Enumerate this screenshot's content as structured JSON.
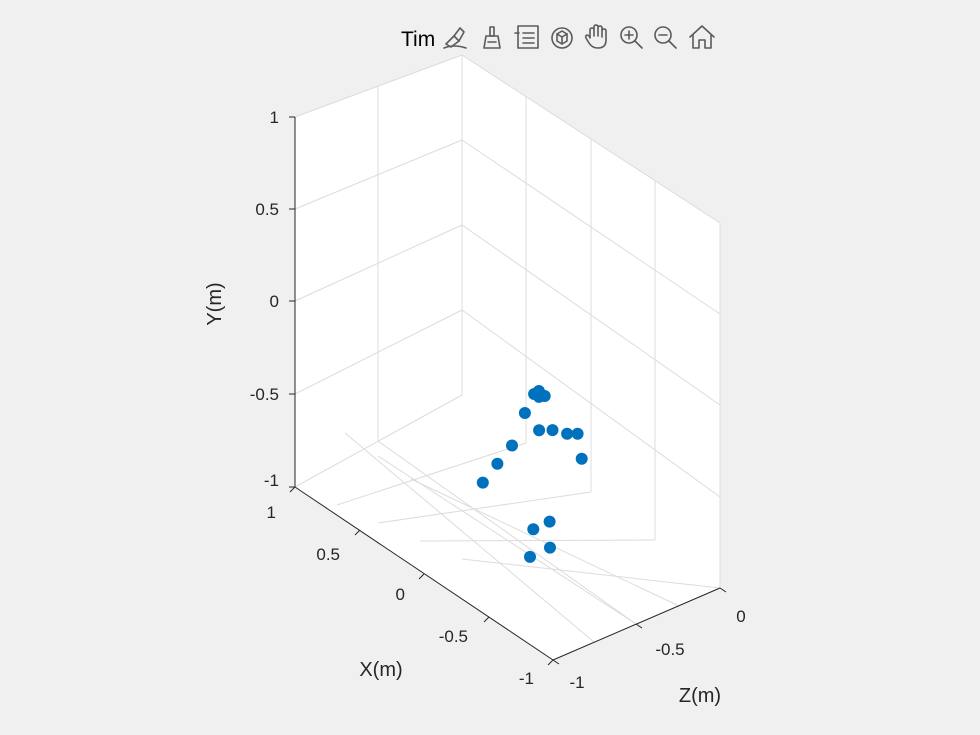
{
  "title": "Tim",
  "toolbar": {
    "icons": [
      "brush-edit-icon",
      "brush-icon",
      "legend-icon",
      "rotate-3d-icon",
      "pan-hand-icon",
      "zoom-in-icon",
      "zoom-out-icon",
      "home-icon"
    ]
  },
  "chart_data": {
    "type": "scatter",
    "title": "Tim",
    "xlabel": "X(m)",
    "ylabel": "Y(m)",
    "zlabel": "Z(m)",
    "xlim": [
      -1,
      1
    ],
    "ylim": [
      -1,
      1
    ],
    "zlim": [
      -1,
      0
    ],
    "x_ticks": [
      "1",
      "0.5",
      "0",
      "-0.5",
      "-1"
    ],
    "y_ticks": [
      "1",
      "0.5",
      "0",
      "-0.5",
      "-1"
    ],
    "z_ticks": [
      "0",
      "-0.5",
      "-1"
    ],
    "grid": true,
    "marker_color": "#0072bd",
    "points": [
      {
        "x": -0.01,
        "y": -0.045,
        "z": -0.4
      },
      {
        "x": -0.067,
        "y": -0.043,
        "z": -0.4
      },
      {
        "x": -0.068,
        "y": -0.078,
        "z": -0.4
      },
      {
        "x": -0.136,
        "y": -0.091,
        "z": -0.4
      },
      {
        "x": 0.101,
        "y": -0.127,
        "z": -0.4
      },
      {
        "x": 0.255,
        "y": -0.276,
        "z": -0.4
      },
      {
        "x": 0.43,
        "y": -0.336,
        "z": -0.4
      },
      {
        "x": 0.605,
        "y": -0.4,
        "z": -0.4
      },
      {
        "x": -0.23,
        "y": -0.317,
        "z": -0.4
      },
      {
        "x": -0.405,
        "y": -0.386,
        "z": -0.4
      },
      {
        "x": -0.53,
        "y": -0.42,
        "z": -0.4
      },
      {
        "x": -0.58,
        "y": -0.58,
        "z": -0.4
      },
      {
        "x": 0.0,
        "y": -0.838,
        "z": -0.4
      },
      {
        "x": -0.195,
        "y": -0.846,
        "z": -0.4
      },
      {
        "x": -0.07,
        "y": -0.275,
        "z": -0.4
      },
      {
        "x": 0.04,
        "y": -0.99,
        "z": -0.4
      },
      {
        "x": -0.2,
        "y": -1.0,
        "z": -0.4
      }
    ],
    "colors": {
      "marker": "#0072bd",
      "grid": "#dcdcdc",
      "axis": "#262626",
      "background": "#f0f0f0",
      "axes_bg": "#ffffff"
    }
  }
}
